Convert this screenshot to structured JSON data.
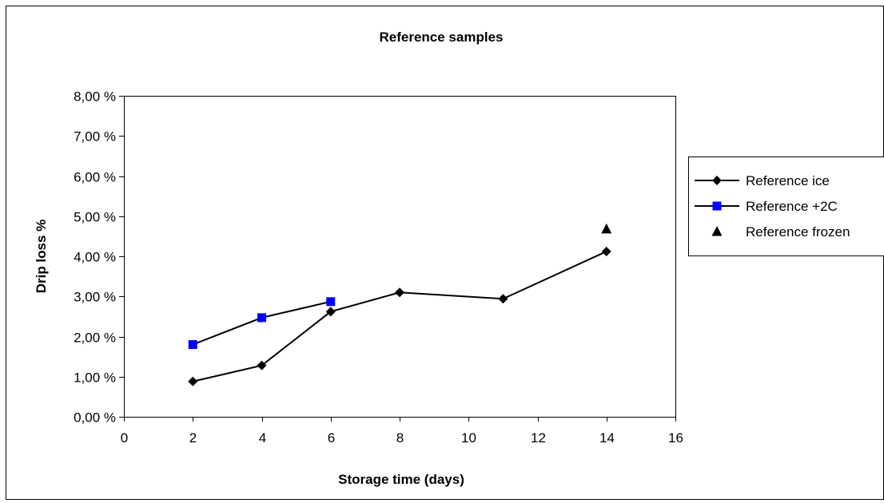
{
  "chart_data": {
    "type": "line",
    "title": "Reference samples",
    "xlabel": "Storage time (days)",
    "ylabel": "Drip loss %",
    "xlim": [
      0,
      16
    ],
    "ylim": [
      0,
      0.08
    ],
    "x_ticks": [
      "0",
      "2",
      "4",
      "6",
      "8",
      "10",
      "12",
      "14",
      "16"
    ],
    "y_ticks": [
      "0,00 %",
      "1,00 %",
      "2,00 %",
      "3,00 %",
      "4,00 %",
      "5,00 %",
      "6,00 %",
      "7,00 %",
      "8,00 %"
    ],
    "grid": false,
    "legend_position": "right",
    "series": [
      {
        "name": "Reference ice",
        "color": "#000000",
        "marker": "diamond",
        "line": true,
        "x": [
          2,
          4,
          6,
          8,
          11,
          14
        ],
        "y": [
          0.0088,
          0.0128,
          0.0262,
          0.031,
          0.0294,
          0.0412
        ]
      },
      {
        "name": "Reference +2C",
        "color": "#0000ff",
        "line_color": "#000000",
        "marker": "square",
        "line": true,
        "x": [
          2,
          4,
          6
        ],
        "y": [
          0.018,
          0.0247,
          0.0287
        ]
      },
      {
        "name": "Reference frozen",
        "color": "#000000",
        "marker": "triangle",
        "line": false,
        "x": [
          14
        ],
        "y": [
          0.0468
        ]
      }
    ]
  }
}
